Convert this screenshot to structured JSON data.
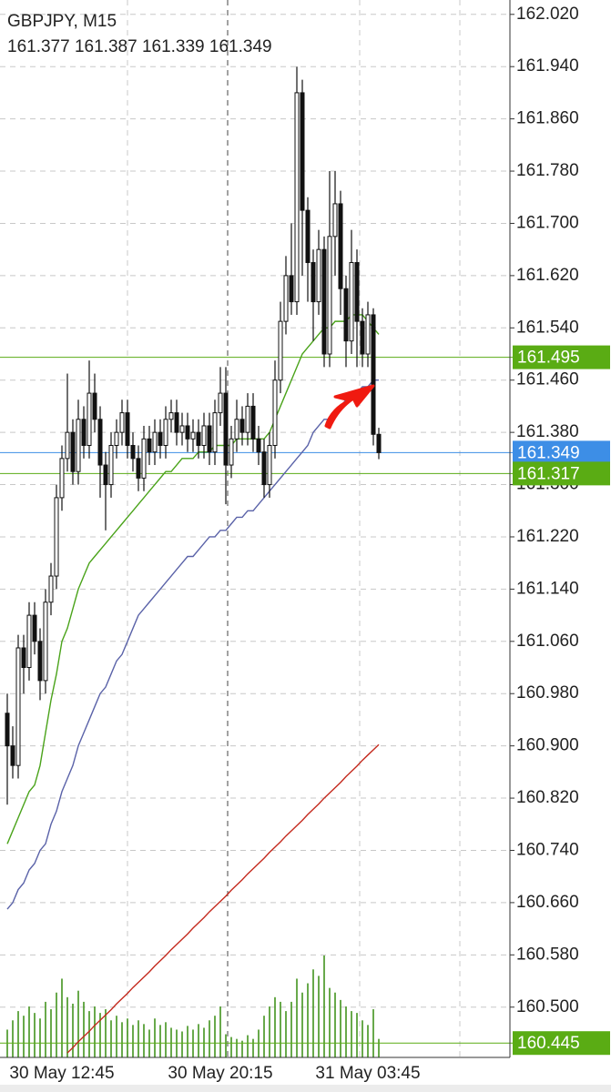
{
  "chart_data": {
    "type": "candlestick",
    "title": "GBPJPY, M15",
    "categories": [
      null,
      null,
      null,
      null,
      null,
      null,
      null,
      null,
      null,
      null,
      "30 May 12:45",
      null,
      null,
      null,
      null,
      null,
      null,
      null,
      null,
      null,
      null,
      null,
      null,
      null,
      null,
      null,
      null,
      null,
      null,
      null,
      null,
      null,
      null,
      null,
      null,
      null,
      null,
      null,
      null,
      "30 May 20:15",
      null,
      null,
      null,
      null,
      null,
      null,
      null,
      null,
      null,
      null,
      null,
      null,
      null,
      null,
      null,
      null,
      null,
      null,
      null,
      null,
      null,
      null,
      null,
      null,
      null,
      null,
      "31 May 03:45",
      null,
      null
    ],
    "ohlc": {
      "open": [
        160.95,
        160.9,
        160.87,
        161.05,
        161.02,
        161.1,
        161.06,
        161.0,
        161.12,
        161.16,
        161.28,
        161.34,
        161.38,
        161.32,
        161.4,
        161.36,
        161.44,
        161.4,
        161.33,
        161.3,
        161.36,
        161.38,
        161.41,
        161.36,
        161.34,
        161.31,
        161.37,
        161.35,
        161.38,
        161.36,
        161.4,
        161.41,
        161.38,
        161.39,
        161.37,
        161.38,
        161.36,
        161.39,
        161.35,
        161.41,
        161.44,
        161.33,
        161.37,
        161.4,
        161.38,
        161.42,
        161.37,
        161.35,
        161.3,
        161.36,
        161.46,
        161.55,
        161.62,
        161.58,
        161.9,
        161.72,
        161.64,
        161.58,
        161.66,
        161.5,
        161.68,
        161.73,
        161.6,
        161.52,
        161.64,
        161.55,
        161.5,
        161.56,
        161.377
      ],
      "high": [
        160.98,
        160.93,
        161.07,
        161.07,
        161.12,
        161.12,
        161.08,
        161.14,
        161.18,
        161.3,
        161.36,
        161.47,
        161.4,
        161.43,
        161.42,
        161.49,
        161.47,
        161.42,
        161.35,
        161.38,
        161.4,
        161.43,
        161.43,
        161.38,
        161.36,
        161.39,
        161.39,
        161.4,
        161.4,
        161.42,
        161.43,
        161.43,
        161.41,
        161.41,
        161.4,
        161.4,
        161.41,
        161.41,
        161.43,
        161.48,
        161.48,
        161.39,
        161.43,
        161.42,
        161.44,
        161.44,
        161.39,
        161.37,
        161.38,
        161.49,
        161.58,
        161.65,
        161.7,
        161.94,
        161.92,
        161.74,
        161.66,
        161.69,
        161.68,
        161.78,
        161.78,
        161.75,
        161.62,
        161.69,
        161.66,
        161.57,
        161.58,
        161.57,
        161.387
      ],
      "low": [
        160.81,
        160.85,
        160.85,
        160.98,
        161.0,
        161.04,
        160.97,
        160.98,
        161.1,
        161.14,
        161.26,
        161.32,
        161.3,
        161.3,
        161.34,
        161.34,
        161.38,
        161.28,
        161.23,
        161.28,
        161.34,
        161.36,
        161.34,
        161.32,
        161.29,
        161.29,
        161.33,
        161.33,
        161.34,
        161.34,
        161.38,
        161.36,
        161.36,
        161.35,
        161.35,
        161.34,
        161.34,
        161.33,
        161.33,
        161.39,
        161.27,
        161.31,
        161.35,
        161.36,
        161.36,
        161.35,
        161.33,
        161.28,
        161.28,
        161.34,
        161.44,
        161.53,
        161.56,
        161.56,
        161.62,
        161.58,
        161.52,
        161.56,
        161.48,
        161.48,
        161.62,
        161.56,
        161.48,
        161.5,
        161.48,
        161.48,
        161.48,
        161.36,
        161.339
      ],
      "close": [
        160.9,
        160.87,
        161.05,
        161.02,
        161.1,
        161.06,
        161.0,
        161.12,
        161.16,
        161.28,
        161.34,
        161.38,
        161.32,
        161.4,
        161.36,
        161.44,
        161.4,
        161.33,
        161.3,
        161.36,
        161.38,
        161.41,
        161.36,
        161.34,
        161.31,
        161.37,
        161.35,
        161.38,
        161.36,
        161.4,
        161.41,
        161.38,
        161.39,
        161.37,
        161.38,
        161.36,
        161.39,
        161.35,
        161.41,
        161.44,
        161.33,
        161.37,
        161.4,
        161.38,
        161.42,
        161.37,
        161.35,
        161.3,
        161.36,
        161.46,
        161.55,
        161.62,
        161.58,
        161.9,
        161.72,
        161.64,
        161.58,
        161.66,
        161.5,
        161.68,
        161.73,
        161.6,
        161.52,
        161.64,
        161.55,
        161.5,
        161.56,
        161.377,
        161.349
      ]
    },
    "moving_averages": [
      {
        "color": "#4aa31a",
        "values": [
          160.75,
          160.77,
          160.79,
          160.81,
          160.83,
          160.84,
          160.87,
          160.92,
          160.97,
          161.01,
          161.06,
          161.08,
          161.11,
          161.14,
          161.16,
          161.18,
          161.19,
          161.2,
          161.21,
          161.22,
          161.23,
          161.24,
          161.25,
          161.26,
          161.27,
          161.28,
          161.29,
          161.3,
          161.31,
          161.32,
          161.32,
          161.33,
          161.34,
          161.34,
          161.34,
          161.35,
          161.35,
          161.35,
          161.36,
          161.36,
          161.36,
          161.36,
          161.37,
          161.37,
          161.37,
          161.37,
          161.37,
          161.37,
          161.38,
          161.4,
          161.42,
          161.44,
          161.46,
          161.48,
          161.5,
          161.51,
          161.52,
          161.53,
          161.54,
          161.54,
          161.55,
          161.55,
          161.55,
          161.56,
          161.56,
          161.56,
          161.55,
          161.54,
          161.53
        ]
      },
      {
        "color": "#5a62a8",
        "values": [
          160.65,
          160.66,
          160.68,
          160.69,
          160.71,
          160.72,
          160.74,
          160.75,
          160.78,
          160.8,
          160.83,
          160.85,
          160.87,
          160.9,
          160.92,
          160.94,
          160.96,
          160.98,
          160.99,
          161.01,
          161.03,
          161.04,
          161.06,
          161.08,
          161.1,
          161.11,
          161.12,
          161.13,
          161.14,
          161.15,
          161.16,
          161.17,
          161.18,
          161.19,
          161.19,
          161.2,
          161.21,
          161.22,
          161.22,
          161.23,
          161.23,
          161.24,
          161.25,
          161.25,
          161.26,
          161.26,
          161.27,
          161.28,
          161.29,
          161.3,
          161.31,
          161.32,
          161.33,
          161.34,
          161.35,
          161.36,
          161.38,
          161.39,
          161.4,
          161.4,
          161.41,
          161.42,
          161.43,
          161.44,
          161.44,
          161.45,
          161.45,
          161.46,
          161.46
        ]
      },
      {
        "color": "#c42a1e",
        "values": [
          null,
          null,
          null,
          null,
          null,
          null,
          null,
          null,
          null,
          null,
          null,
          160.43,
          160.438,
          160.447,
          160.455,
          160.463,
          160.472,
          160.48,
          160.488,
          160.496,
          160.505,
          160.513,
          160.521,
          160.53,
          160.538,
          160.546,
          160.554,
          160.563,
          160.571,
          160.579,
          160.588,
          160.596,
          160.604,
          160.612,
          160.621,
          160.629,
          160.637,
          160.646,
          160.654,
          160.662,
          160.67,
          160.679,
          160.687,
          160.695,
          160.704,
          160.712,
          160.72,
          160.728,
          160.737,
          160.745,
          160.753,
          160.762,
          160.77,
          160.778,
          160.786,
          160.795,
          160.803,
          160.811,
          160.82,
          160.828,
          160.836,
          160.844,
          160.853,
          160.861,
          160.869,
          160.878,
          160.886,
          160.894,
          160.902
        ]
      }
    ],
    "volume": {
      "color": "#4e9a2c",
      "values": [
        30,
        40,
        50,
        45,
        55,
        48,
        42,
        60,
        52,
        70,
        85,
        65,
        58,
        72,
        60,
        50,
        55,
        48,
        52,
        40,
        45,
        38,
        42,
        35,
        40,
        36,
        30,
        42,
        35,
        38,
        32,
        30,
        28,
        34,
        30,
        36,
        32,
        40,
        45,
        55,
        25,
        22,
        20,
        18,
        24,
        20,
        30,
        45,
        55,
        65,
        60,
        50,
        60,
        85,
        70,
        80,
        95,
        88,
        110,
        75,
        70,
        62,
        55,
        50,
        48,
        40,
        35,
        52,
        20
      ]
    },
    "levels": [
      {
        "value": 161.495,
        "color": "#5aac14"
      },
      {
        "value": 161.349,
        "color": "#3d8ee6"
      },
      {
        "value": 161.317,
        "color": "#5aac14"
      },
      {
        "value": 160.445,
        "color": "#5aac14"
      }
    ],
    "ylim": [
      160.423,
      162.042
    ],
    "yticks": [
      {
        "value": 162.02,
        "label": "162.020"
      },
      {
        "value": 161.94,
        "label": "161.940"
      },
      {
        "value": 161.86,
        "label": "161.860"
      },
      {
        "value": 161.78,
        "label": "161.780"
      },
      {
        "value": 161.7,
        "label": "161.700"
      },
      {
        "value": 161.62,
        "label": "161.620"
      },
      {
        "value": 161.54,
        "label": "161.540"
      },
      {
        "value": 161.46,
        "label": "161.460"
      },
      {
        "value": 161.38,
        "label": "161.380"
      },
      {
        "value": 161.3,
        "label": "161.300"
      },
      {
        "value": 161.22,
        "label": "161.220"
      },
      {
        "value": 161.14,
        "label": "161.140"
      },
      {
        "value": 161.06,
        "label": "161.060"
      },
      {
        "value": 160.98,
        "label": "160.980"
      },
      {
        "value": 160.9,
        "label": "160.900"
      },
      {
        "value": 160.82,
        "label": "160.820"
      },
      {
        "value": 160.74,
        "label": "160.740"
      },
      {
        "value": 160.66,
        "label": "160.660"
      },
      {
        "value": 160.58,
        "label": "160.580"
      },
      {
        "value": 160.5,
        "label": "160.500"
      }
    ],
    "grid": true
  }
}
